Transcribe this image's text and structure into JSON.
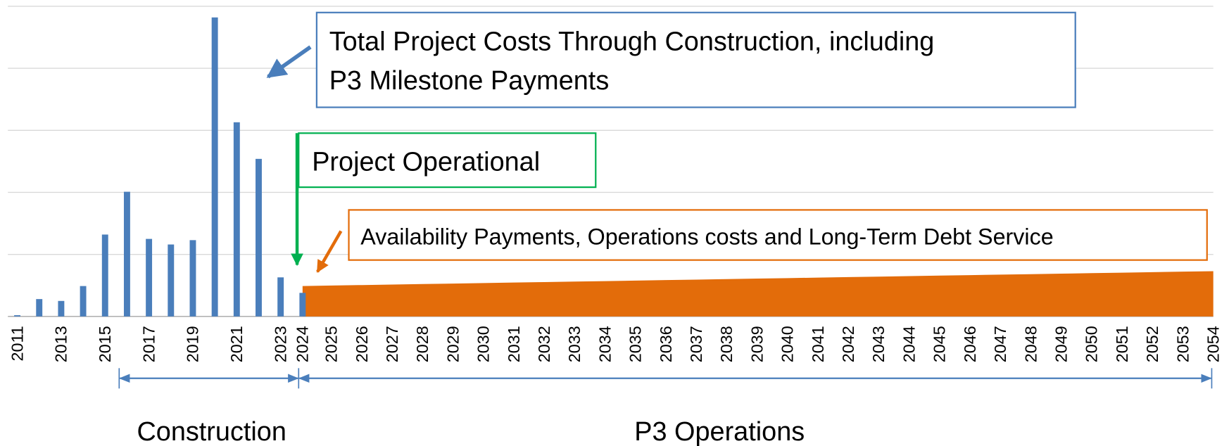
{
  "chart_data": {
    "type": "bar",
    "categories": [
      "2011",
      null,
      "2013",
      null,
      "2015",
      null,
      "2017",
      null,
      "2019",
      null,
      "2021",
      null,
      "2023",
      "2024",
      "2025",
      "2026",
      "2027",
      "2028",
      "2029",
      "2030",
      "2031",
      "2032",
      "2033",
      "2034",
      "2035",
      "2036",
      "2037",
      "2038",
      "2039",
      "2040",
      "2041",
      "2042",
      "2043",
      "2044",
      "2045",
      "2046",
      "2047",
      "2048",
      "2049",
      "2050",
      "2051",
      "2052",
      "2053",
      "2054"
    ],
    "series": [
      {
        "type": "bar",
        "color": "#4a7ebb",
        "values": [
          0.02,
          0.28,
          0.25,
          0.49,
          1.32,
          2.01,
          1.25,
          1.16,
          1.23,
          4.82,
          3.13,
          2.54,
          0.63,
          0.38,
          null,
          null,
          null,
          null,
          null,
          null,
          null,
          null,
          null,
          null,
          null,
          null,
          null,
          null,
          null,
          null,
          null,
          null,
          null,
          null,
          null,
          null,
          null,
          null,
          null,
          null,
          null,
          null,
          null,
          null
        ]
      },
      {
        "type": "area",
        "color": "#e36c0a",
        "values": [
          null,
          null,
          null,
          null,
          null,
          null,
          null,
          null,
          null,
          null,
          null,
          null,
          null,
          0.49,
          0.498,
          0.506,
          0.514,
          0.522,
          0.53,
          0.538,
          0.546,
          0.554,
          0.562,
          0.57,
          0.578,
          0.586,
          0.594,
          0.602,
          0.61,
          0.618,
          0.626,
          0.634,
          0.642,
          0.65,
          0.658,
          0.666,
          0.674,
          0.682,
          0.69,
          0.698,
          0.706,
          0.714,
          0.722,
          0.73
        ]
      }
    ],
    "ylim": [
      0,
      5
    ],
    "yticks": [
      0,
      1,
      2,
      3,
      4,
      5
    ],
    "grid": true,
    "annotations": [
      "Total Project Costs Through Construction, including",
      "P3 Milestone Payments",
      "Project Operational",
      "Availability Payments, Operations costs and Long-Term Debt Service",
      "Construction",
      "P3 Operations"
    ]
  }
}
